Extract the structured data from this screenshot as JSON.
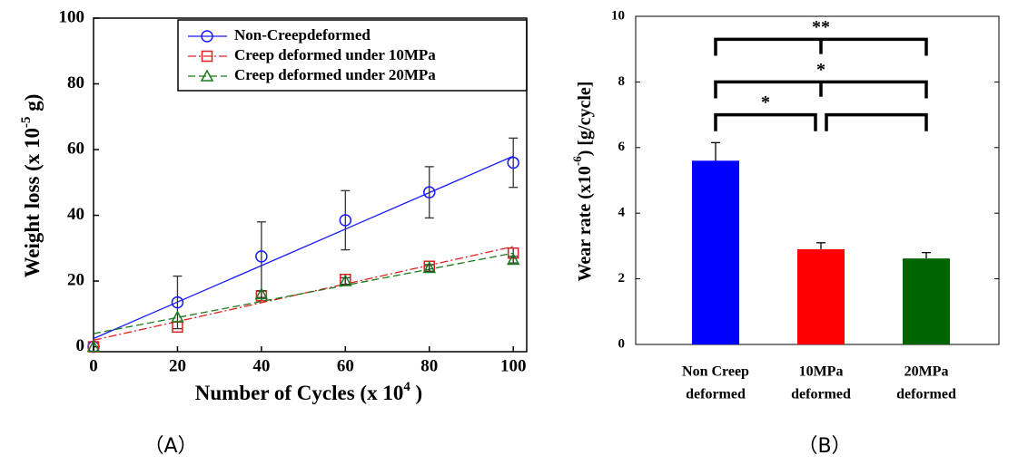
{
  "chart_data": [
    {
      "type": "line",
      "panel_label": "（A）",
      "ylabel": {
        "text": "Weight loss (x 10",
        "sup": "-5",
        "after": " g)"
      },
      "xlabel": {
        "text": "Number of Cycles (x 10",
        "sup": "4",
        "after": " )"
      },
      "x": [
        0,
        20,
        40,
        60,
        80,
        100
      ],
      "xlim": [
        0,
        103.2
      ],
      "xticks": [
        0,
        20,
        40,
        60,
        80,
        100
      ],
      "ylim": [
        -1.5,
        100
      ],
      "yticks": [
        0,
        20,
        40,
        60,
        80,
        100
      ],
      "grid": false,
      "series": [
        {
          "name": "Non-Creepdeformed",
          "color": "#1a1aff",
          "marker": "circle",
          "linestyle": "solid",
          "values": [
            0,
            13.5,
            27.5,
            38.5,
            47,
            56
          ],
          "errors": [
            0,
            8,
            10.5,
            9,
            7.8,
            7.5
          ],
          "trendline": {
            "x": [
              0,
              100
            ],
            "y": [
              2.5,
              58
            ]
          }
        },
        {
          "name": "Creep deformed under 10MPa",
          "color": "#e02020",
          "marker": "square",
          "linestyle": "dashdot",
          "values": [
            0,
            6,
            15.5,
            20.5,
            24.5,
            28.5
          ],
          "errors": [
            0,
            0,
            1.5,
            1.5,
            1.5,
            1.5
          ],
          "trendline": {
            "x": [
              0,
              100
            ],
            "y": [
              2,
              30.5
            ]
          }
        },
        {
          "name": "Creep deformed under 20MPa",
          "color": "#1a7a1a",
          "marker": "triangle",
          "linestyle": "dashed",
          "values": [
            0,
            9,
            16,
            20,
            24,
            26.5
          ],
          "errors": [
            0,
            0,
            1,
            1,
            1,
            1
          ],
          "trendline": {
            "x": [
              0,
              100
            ],
            "y": [
              4,
              28.5
            ]
          }
        }
      ]
    },
    {
      "type": "bar",
      "panel_label": "（B）",
      "ylabel": {
        "text": "Wear rate (x10",
        "sup": "-6",
        "after": ") [g/cycle]"
      },
      "categories": [
        [
          "Non Creep",
          "deformed"
        ],
        [
          "10MPa",
          "deformed"
        ],
        [
          "20MPa",
          "deformed"
        ]
      ],
      "values": [
        5.6,
        2.9,
        2.62
      ],
      "errors": [
        0.55,
        0.2,
        0.18
      ],
      "colors": [
        "#0000ff",
        "#ff0000",
        "#006400"
      ],
      "ylim": [
        0,
        10
      ],
      "yticks": [
        0,
        2,
        4,
        6,
        8,
        10
      ],
      "brackets": [
        {
          "from": 0,
          "to": 2,
          "y": 9.3,
          "label": "**"
        },
        {
          "from": 0,
          "to": 2,
          "y": 8,
          "label": "*"
        },
        {
          "from": 0,
          "to": 1,
          "y": 7,
          "label": "*"
        },
        {
          "from": 1,
          "to": 2,
          "y": 7
        }
      ]
    }
  ]
}
